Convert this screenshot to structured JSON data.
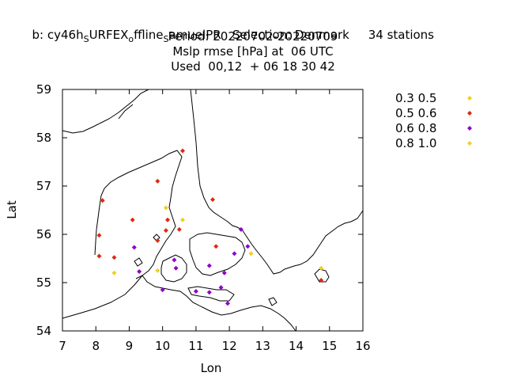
{
  "title": {
    "line1": "b: cy46h_SURFEX_offline_samuelPR   Selection: Denmark     34 stations",
    "line1_parts": [
      "b: cy46h",
      "S",
      "URFEX",
      "o",
      "ffline",
      "S",
      "amuelPR   Selection: Denmark     34 stations"
    ],
    "line2": "Period: 20220702-20220709",
    "line3": "Mslp rmse [hPa] at  06 UTC",
    "line4": "Used  00,12  + 06 18 30 42"
  },
  "chart_data": {
    "type": "scatter",
    "xlabel": "Lon",
    "ylabel": "Lat",
    "xlim": [
      7,
      16
    ],
    "ylim": [
      54,
      59
    ],
    "xticks": [
      7,
      8,
      9,
      10,
      11,
      12,
      13,
      14,
      15,
      16
    ],
    "yticks": [
      54,
      55,
      56,
      57,
      58,
      59
    ],
    "legend_position": "right",
    "series": [
      {
        "name": "0.3 0.5",
        "color": "#f0d020",
        "marker": "diamond",
        "points": [
          [
            10.1,
            56.55
          ],
          [
            10.6,
            56.3
          ],
          [
            12.65,
            55.6
          ],
          [
            14.75,
            55.3
          ],
          [
            9.85,
            55.25
          ],
          [
            8.55,
            55.2
          ]
        ]
      },
      {
        "name": "0.5 0.6",
        "color": "#dd2a10",
        "marker": "diamond",
        "points": [
          [
            10.6,
            57.73
          ],
          [
            9.85,
            57.1
          ],
          [
            8.2,
            56.7
          ],
          [
            11.5,
            56.72
          ],
          [
            9.1,
            56.3
          ],
          [
            10.15,
            56.3
          ],
          [
            10.1,
            56.08
          ],
          [
            10.5,
            56.1
          ],
          [
            8.1,
            55.98
          ],
          [
            9.85,
            55.87
          ],
          [
            11.6,
            55.75
          ],
          [
            8.1,
            55.55
          ],
          [
            8.55,
            55.52
          ],
          [
            14.75,
            55.05
          ]
        ]
      },
      {
        "name": "0.6 0.8",
        "color": "#8f00c8",
        "marker": "diamond",
        "points": [
          [
            12.35,
            56.1
          ],
          [
            9.15,
            55.73
          ],
          [
            12.55,
            55.75
          ],
          [
            12.15,
            55.6
          ],
          [
            10.35,
            55.47
          ],
          [
            11.4,
            55.35
          ],
          [
            10.4,
            55.3
          ],
          [
            9.3,
            55.23
          ],
          [
            11.85,
            55.2
          ],
          [
            10.0,
            54.85
          ],
          [
            11.0,
            54.82
          ],
          [
            11.4,
            54.8
          ],
          [
            11.95,
            54.57
          ],
          [
            11.75,
            54.9
          ]
        ]
      },
      {
        "name": "0.8 1.0",
        "color": "#f0d020",
        "marker": "diamond",
        "points": []
      }
    ]
  }
}
